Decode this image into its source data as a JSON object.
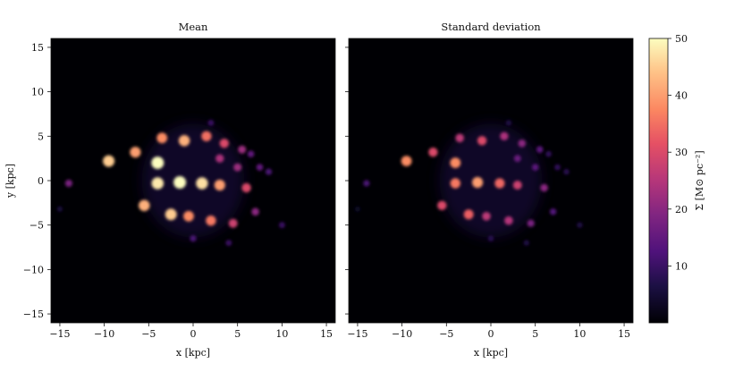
{
  "figure": {
    "panels": [
      {
        "title": "Mean"
      },
      {
        "title": "Standard deviation"
      }
    ],
    "xlabel": "x [kpc]",
    "ylabel": "y [kpc]",
    "colorbar_label": "Σ [M⊙ pc⁻²]",
    "colormap": "magma"
  },
  "chart_data": [
    {
      "type": "heatmap",
      "title": "Mean",
      "xlabel": "x [kpc]",
      "ylabel": "y [kpc]",
      "xlim": [
        -16,
        16
      ],
      "ylim": [
        -16,
        16
      ],
      "xticks": [
        -15,
        -10,
        -5,
        0,
        5,
        10,
        15
      ],
      "yticks": [
        -15,
        -10,
        -5,
        0,
        5,
        10,
        15
      ],
      "colorbar": {
        "label": "Σ [M⊙ pc⁻²]",
        "range": [
          0,
          50
        ],
        "ticks": [
          10,
          20,
          30,
          40,
          50
        ]
      },
      "features": [
        {
          "x": -9.5,
          "y": 2.2,
          "value": 45
        },
        {
          "x": -6.5,
          "y": 3.2,
          "value": 40
        },
        {
          "x": -4.0,
          "y": 2.0,
          "value": 50
        },
        {
          "x": -3.5,
          "y": 4.8,
          "value": 38
        },
        {
          "x": -1.0,
          "y": 4.5,
          "value": 42
        },
        {
          "x": 1.5,
          "y": 5.0,
          "value": 35
        },
        {
          "x": 3.5,
          "y": 4.2,
          "value": 30
        },
        {
          "x": 5.5,
          "y": 3.5,
          "value": 22
        },
        {
          "x": -4.0,
          "y": -0.3,
          "value": 48
        },
        {
          "x": -1.5,
          "y": -0.2,
          "value": 50
        },
        {
          "x": 1.0,
          "y": -0.3,
          "value": 47
        },
        {
          "x": 3.0,
          "y": -0.5,
          "value": 40
        },
        {
          "x": 6.0,
          "y": -0.8,
          "value": 30
        },
        {
          "x": -5.5,
          "y": -2.8,
          "value": 42
        },
        {
          "x": -2.5,
          "y": -3.8,
          "value": 45
        },
        {
          "x": -0.5,
          "y": -4.0,
          "value": 38
        },
        {
          "x": 2.0,
          "y": -4.5,
          "value": 36
        },
        {
          "x": 4.5,
          "y": -4.8,
          "value": 28
        },
        {
          "x": 7.0,
          "y": -3.5,
          "value": 20
        },
        {
          "x": 3.0,
          "y": 2.5,
          "value": 24
        },
        {
          "x": 5.0,
          "y": 1.5,
          "value": 22
        },
        {
          "x": 7.5,
          "y": 1.5,
          "value": 15
        },
        {
          "x": 6.5,
          "y": 3.0,
          "value": 15
        },
        {
          "x": -14.0,
          "y": -0.3,
          "value": 18
        },
        {
          "x": -15.0,
          "y": -3.2,
          "value": 6
        },
        {
          "x": 10.0,
          "y": -5.0,
          "value": 10
        },
        {
          "x": 8.5,
          "y": 1.0,
          "value": 12
        },
        {
          "x": 0.0,
          "y": -6.5,
          "value": 12
        },
        {
          "x": 2.0,
          "y": 6.5,
          "value": 10
        },
        {
          "x": 4.0,
          "y": -7.0,
          "value": 10
        }
      ]
    },
    {
      "type": "heatmap",
      "title": "Standard deviation",
      "xlabel": "x [kpc]",
      "xlim": [
        -16,
        16
      ],
      "ylim": [
        -16,
        16
      ],
      "xticks": [
        -15,
        -10,
        -5,
        0,
        5,
        10,
        15
      ],
      "yticks": [
        -15,
        -10,
        -5,
        0,
        5,
        10,
        15
      ],
      "colorbar": {
        "label": "Σ [M⊙ pc⁻²]",
        "range": [
          0,
          50
        ],
        "ticks": [
          10,
          20,
          30,
          40,
          50
        ]
      },
      "features": [
        {
          "x": -9.5,
          "y": 2.2,
          "value": 38
        },
        {
          "x": -6.5,
          "y": 3.2,
          "value": 30
        },
        {
          "x": -4.0,
          "y": 2.0,
          "value": 38
        },
        {
          "x": -3.5,
          "y": 4.8,
          "value": 26
        },
        {
          "x": -1.0,
          "y": 4.5,
          "value": 30
        },
        {
          "x": 1.5,
          "y": 5.0,
          "value": 24
        },
        {
          "x": 3.5,
          "y": 4.2,
          "value": 20
        },
        {
          "x": 5.5,
          "y": 3.5,
          "value": 14
        },
        {
          "x": -4.0,
          "y": -0.3,
          "value": 36
        },
        {
          "x": -1.5,
          "y": -0.2,
          "value": 40
        },
        {
          "x": 1.0,
          "y": -0.3,
          "value": 34
        },
        {
          "x": 3.0,
          "y": -0.5,
          "value": 28
        },
        {
          "x": 6.0,
          "y": -0.8,
          "value": 20
        },
        {
          "x": -5.5,
          "y": -2.8,
          "value": 30
        },
        {
          "x": -2.5,
          "y": -3.8,
          "value": 33
        },
        {
          "x": -0.5,
          "y": -4.0,
          "value": 26
        },
        {
          "x": 2.0,
          "y": -4.5,
          "value": 25
        },
        {
          "x": 4.5,
          "y": -4.8,
          "value": 18
        },
        {
          "x": 7.0,
          "y": -3.5,
          "value": 13
        },
        {
          "x": 3.0,
          "y": 2.5,
          "value": 16
        },
        {
          "x": 5.0,
          "y": 1.5,
          "value": 14
        },
        {
          "x": 7.5,
          "y": 1.5,
          "value": 9
        },
        {
          "x": 6.5,
          "y": 3.0,
          "value": 9
        },
        {
          "x": -14.0,
          "y": -0.3,
          "value": 12
        },
        {
          "x": -15.0,
          "y": -3.2,
          "value": 4
        },
        {
          "x": 10.0,
          "y": -5.0,
          "value": 7
        },
        {
          "x": 8.5,
          "y": 1.0,
          "value": 8
        },
        {
          "x": 0.0,
          "y": -6.5,
          "value": 8
        },
        {
          "x": 2.0,
          "y": 6.5,
          "value": 7
        },
        {
          "x": 4.0,
          "y": -7.0,
          "value": 7
        }
      ]
    }
  ]
}
